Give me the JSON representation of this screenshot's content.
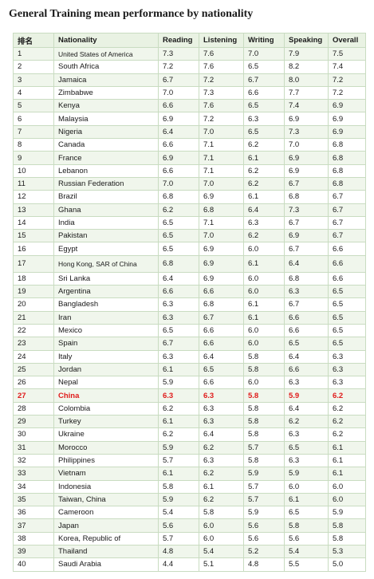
{
  "title": "General Training mean performance by nationality",
  "table": {
    "headers": [
      "排名",
      "Nationality",
      "Reading",
      "Listening",
      "Writing",
      "Speaking",
      "Overall"
    ],
    "rows": [
      [
        "1",
        "United States of America",
        "7.3",
        "7.6",
        "7.0",
        "7.9",
        "7.5"
      ],
      [
        "2",
        "South Africa",
        "7.2",
        "7.6",
        "6.5",
        "8.2",
        "7.4"
      ],
      [
        "3",
        "Jamaica",
        "6.7",
        "7.2",
        "6.7",
        "8.0",
        "7.2"
      ],
      [
        "4",
        "Zimbabwe",
        "7.0",
        "7.3",
        "6.6",
        "7.7",
        "7.2"
      ],
      [
        "5",
        "Kenya",
        "6.6",
        "7.6",
        "6.5",
        "7.4",
        "6.9"
      ],
      [
        "6",
        "Malaysia",
        "6.9",
        "7.2",
        "6.3",
        "6.9",
        "6.9"
      ],
      [
        "7",
        "Nigeria",
        "6.4",
        "7.0",
        "6.5",
        "7.3",
        "6.9"
      ],
      [
        "8",
        "Canada",
        "6.6",
        "7.1",
        "6.2",
        "7.0",
        "6.8"
      ],
      [
        "9",
        "France",
        "6.9",
        "7.1",
        "6.1",
        "6.9",
        "6.8"
      ],
      [
        "10",
        "Lebanon",
        "6.6",
        "7.1",
        "6.2",
        "6.9",
        "6.8"
      ],
      [
        "11",
        "Russian Federation",
        "7.0",
        "7.0",
        "6.2",
        "6.7",
        "6.8"
      ],
      [
        "12",
        "Brazil",
        "6.8",
        "6.9",
        "6.1",
        "6.8",
        "6.7"
      ],
      [
        "13",
        "Ghana",
        "6.2",
        "6.8",
        "6.4",
        "7.3",
        "6.7"
      ],
      [
        "14",
        "India",
        "6.5",
        "7.1",
        "6.3",
        "6.7",
        "6.7"
      ],
      [
        "15",
        "Pakistan",
        "6.5",
        "7.0",
        "6.2",
        "6.9",
        "6.7"
      ],
      [
        "16",
        "Egypt",
        "6.5",
        "6.9",
        "6.0",
        "6.7",
        "6.6"
      ],
      [
        "17",
        "Hong Kong, SAR of China",
        "6.8",
        "6.9",
        "6.1",
        "6.4",
        "6.6"
      ],
      [
        "18",
        "Sri Lanka",
        "6.4",
        "6.9",
        "6.0",
        "6.8",
        "6.6"
      ],
      [
        "19",
        "Argentina",
        "6.6",
        "6.6",
        "6.0",
        "6.3",
        "6.5"
      ],
      [
        "20",
        "Bangladesh",
        "6.3",
        "6.8",
        "6.1",
        "6.7",
        "6.5"
      ],
      [
        "21",
        "Iran",
        "6.3",
        "6.7",
        "6.1",
        "6.6",
        "6.5"
      ],
      [
        "22",
        "Mexico",
        "6.5",
        "6.6",
        "6.0",
        "6.6",
        "6.5"
      ],
      [
        "23",
        "Spain",
        "6.7",
        "6.6",
        "6.0",
        "6.5",
        "6.5"
      ],
      [
        "24",
        "Italy",
        "6.3",
        "6.4",
        "5.8",
        "6.4",
        "6.3"
      ],
      [
        "25",
        "Jordan",
        "6.1",
        "6.5",
        "5.8",
        "6.6",
        "6.3"
      ],
      [
        "26",
        "Nepal",
        "5.9",
        "6.6",
        "6.0",
        "6.3",
        "6.3"
      ],
      [
        "27",
        "China",
        "6.3",
        "6.3",
        "5.8",
        "5.9",
        "6.2"
      ],
      [
        "28",
        "Colombia",
        "6.2",
        "6.3",
        "5.8",
        "6.4",
        "6.2"
      ],
      [
        "29",
        "Turkey",
        "6.1",
        "6.3",
        "5.8",
        "6.2",
        "6.2"
      ],
      [
        "30",
        "Ukraine",
        "6.2",
        "6.4",
        "5.8",
        "6.3",
        "6.2"
      ],
      [
        "31",
        "Morocco",
        "5.9",
        "6.2",
        "5.7",
        "6.5",
        "6.1"
      ],
      [
        "32",
        "Philippines",
        "5.7",
        "6.3",
        "5.8",
        "6.3",
        "6.1"
      ],
      [
        "33",
        "Vietnam",
        "6.1",
        "6.2",
        "5.9",
        "5.9",
        "6.1"
      ],
      [
        "34",
        "Indonesia",
        "5.8",
        "6.1",
        "5.7",
        "6.0",
        "6.0"
      ],
      [
        "35",
        "Taiwan, China",
        "5.9",
        "6.2",
        "5.7",
        "6.1",
        "6.0"
      ],
      [
        "36",
        "Cameroon",
        "5.4",
        "5.8",
        "5.9",
        "6.5",
        "5.9"
      ],
      [
        "37",
        "Japan",
        "5.6",
        "6.0",
        "5.6",
        "5.8",
        "5.8"
      ],
      [
        "38",
        "Korea, Republic of",
        "5.7",
        "6.0",
        "5.6",
        "5.6",
        "5.8"
      ],
      [
        "39",
        "Thailand",
        "4.8",
        "5.4",
        "5.2",
        "5.4",
        "5.3"
      ],
      [
        "40",
        "Saudi Arabia",
        "4.4",
        "5.1",
        "4.8",
        "5.5",
        "5.0"
      ]
    ],
    "highlight_row_index": 26,
    "tall_row_index": 16,
    "highlight_color": "#e01b1b"
  }
}
